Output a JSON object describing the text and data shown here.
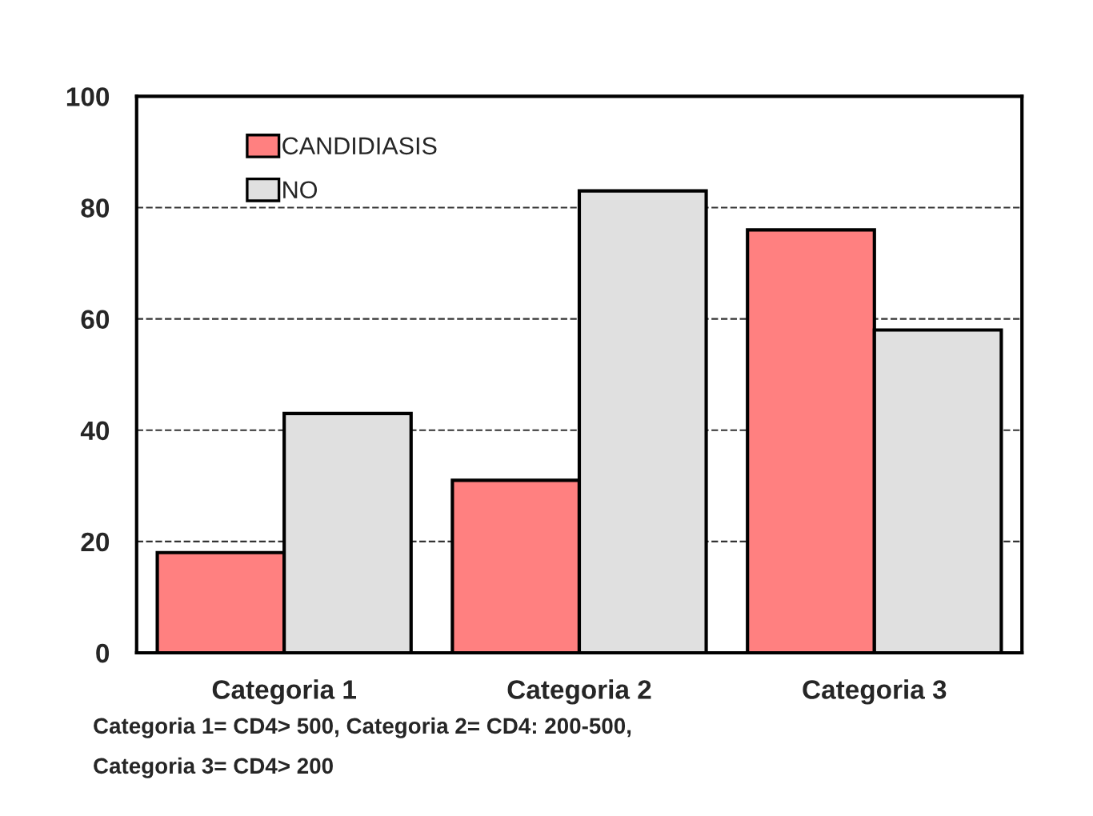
{
  "chart_data": {
    "type": "bar",
    "categories": [
      "Categoria 1",
      "Categoria 2",
      "Categoria 3"
    ],
    "series": [
      {
        "name": "CANDIDIASIS",
        "color": "#ff8080",
        "values": [
          18,
          31,
          76
        ]
      },
      {
        "name": "NO",
        "color": "#e0e0e0",
        "values": [
          43,
          83,
          58
        ]
      }
    ],
    "ylim": [
      0,
      100
    ],
    "yticks": [
      0,
      20,
      40,
      60,
      80,
      100
    ],
    "grid": "y",
    "legend": "top left",
    "annotations": [
      "Categoria 1= CD4> 500, Categoria 2= CD4: 200-500,",
      "Categoria 3= CD4> 200"
    ]
  }
}
